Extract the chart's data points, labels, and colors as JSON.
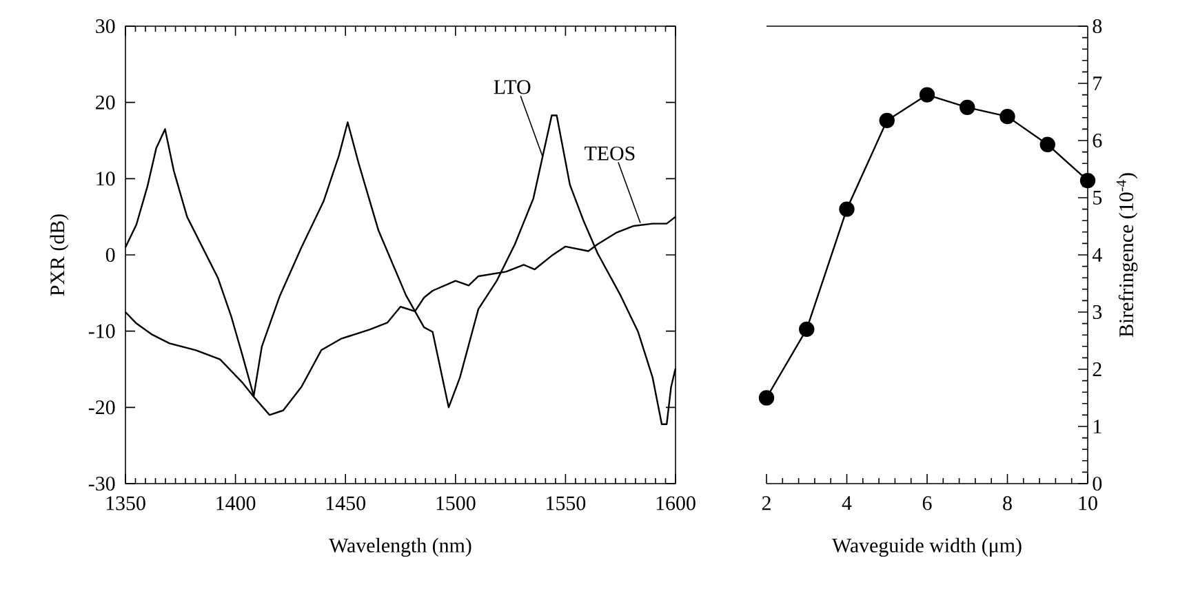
{
  "chart_data": [
    {
      "type": "line",
      "xlabel": "Wavelength (nm)",
      "ylabel": "PXR (dB)",
      "xlim": [
        1350,
        1600
      ],
      "xticks": [
        1350,
        1400,
        1450,
        1500,
        1550,
        1600
      ],
      "ylim": [
        -30,
        30
      ],
      "yticks": [
        -30,
        -20,
        -10,
        0,
        10,
        20,
        30
      ],
      "marker": "none",
      "line_style": "solid",
      "series": [
        {
          "color": "#000000",
          "x": [
            1350,
            1355,
            1360,
            1364,
            1368,
            1372,
            1378,
            1385,
            1392,
            1398,
            1403,
            1408.3,
            1412,
            1420,
            1430,
            1440,
            1447,
            1451,
            1456,
            1465,
            1477.5,
            1485.7,
            1489.6,
            1496.9,
            1502,
            1510.4,
            1518.75,
            1527,
            1535.4,
            1539.6,
            1543.75,
            1546,
            1552,
            1558.3,
            1564.6,
            1575,
            1583,
            1589.6,
            1593.75,
            1596,
            1598,
            1600
          ],
          "values": [
            1,
            4,
            9,
            14,
            16.5,
            11,
            5,
            1,
            -3,
            -8,
            -13,
            -18.5,
            -12,
            -5.5,
            1,
            7,
            13,
            17.4,
            12,
            3.2,
            -5.3,
            -9.5,
            -10.1,
            -20,
            -16.1,
            -7.1,
            -3.4,
            1.4,
            7.4,
            12.9,
            18.3,
            18.3,
            9.2,
            4.4,
            0.2,
            -5.3,
            -10.1,
            -16.1,
            -22.2,
            -22.2,
            -17.3,
            -14.9
          ]
        },
        {
          "color": "#000000",
          "x": [
            1350,
            1355,
            1361.8,
            1370,
            1382,
            1393,
            1403,
            1408,
            1415.5,
            1421.7,
            1430,
            1439,
            1448,
            1461,
            1469,
            1475,
            1481.6,
            1485.7,
            1489.6,
            1500,
            1506,
            1510.4,
            1523,
            1531,
            1536,
            1543.75,
            1550,
            1560.4,
            1564.6,
            1573,
            1581,
            1589.6,
            1596,
            1600
          ],
          "values": [
            -7.5,
            -9,
            -10.4,
            -11.6,
            -12.5,
            -13.7,
            -16.7,
            -18.5,
            -21,
            -20.4,
            -17.3,
            -12.5,
            -11,
            -9.8,
            -8.9,
            -6.8,
            -7.4,
            -5.6,
            -4.7,
            -3.4,
            -4,
            -2.8,
            -2.2,
            -1.3,
            -1.9,
            -0.1,
            1.1,
            0.5,
            1.4,
            2.9,
            3.8,
            4.1,
            4.1,
            5
          ]
        }
      ],
      "annotations": [
        {
          "text": "LTO",
          "x": 1539.6,
          "y": 12.9
        },
        {
          "text": "TEOS",
          "x": 1584,
          "y": 4.2
        }
      ]
    },
    {
      "type": "line",
      "xlabel": "Waveguide width (μm)",
      "y2label": "Birefringence (10$^{-4}$)",
      "x": [
        2,
        3,
        4,
        5,
        6,
        7,
        8,
        9,
        10
      ],
      "xlim": [
        2,
        10
      ],
      "xticks": [
        2,
        4,
        6,
        8,
        10
      ],
      "y2lim": [
        0,
        8
      ],
      "y2ticks": [
        0,
        1,
        2,
        3,
        4,
        5,
        6,
        7,
        8
      ],
      "marker": "circle",
      "line_style": "solid",
      "series": [
        {
          "color": "#000000",
          "axis": "y2",
          "values": [
            1.5,
            2.7,
            4.8,
            6.35,
            6.8,
            6.58,
            6.42,
            5.93,
            5.3
          ]
        }
      ]
    }
  ]
}
